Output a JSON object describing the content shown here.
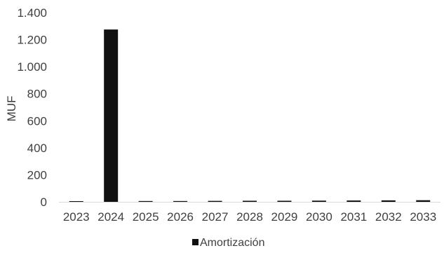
{
  "chart_data": {
    "type": "bar",
    "title": "",
    "xlabel": "",
    "ylabel": "MUF",
    "categories": [
      "2023",
      "2024",
      "2025",
      "2026",
      "2027",
      "2028",
      "2029",
      "2030",
      "2031",
      "2032",
      "2033"
    ],
    "series": [
      {
        "name": "Amortización",
        "color": "#111111",
        "values": [
          5,
          1275,
          6,
          6,
          7,
          8,
          8,
          9,
          10,
          11,
          12
        ]
      }
    ],
    "ylim": [
      0,
      1400
    ],
    "yticks": [
      0,
      200,
      400,
      600,
      800,
      1000,
      1200,
      1400
    ],
    "ytick_labels": [
      "0",
      "200",
      "400",
      "600",
      "800",
      "1.000",
      "1.200",
      "1.400"
    ],
    "grid": false,
    "legend_position": "bottom"
  }
}
